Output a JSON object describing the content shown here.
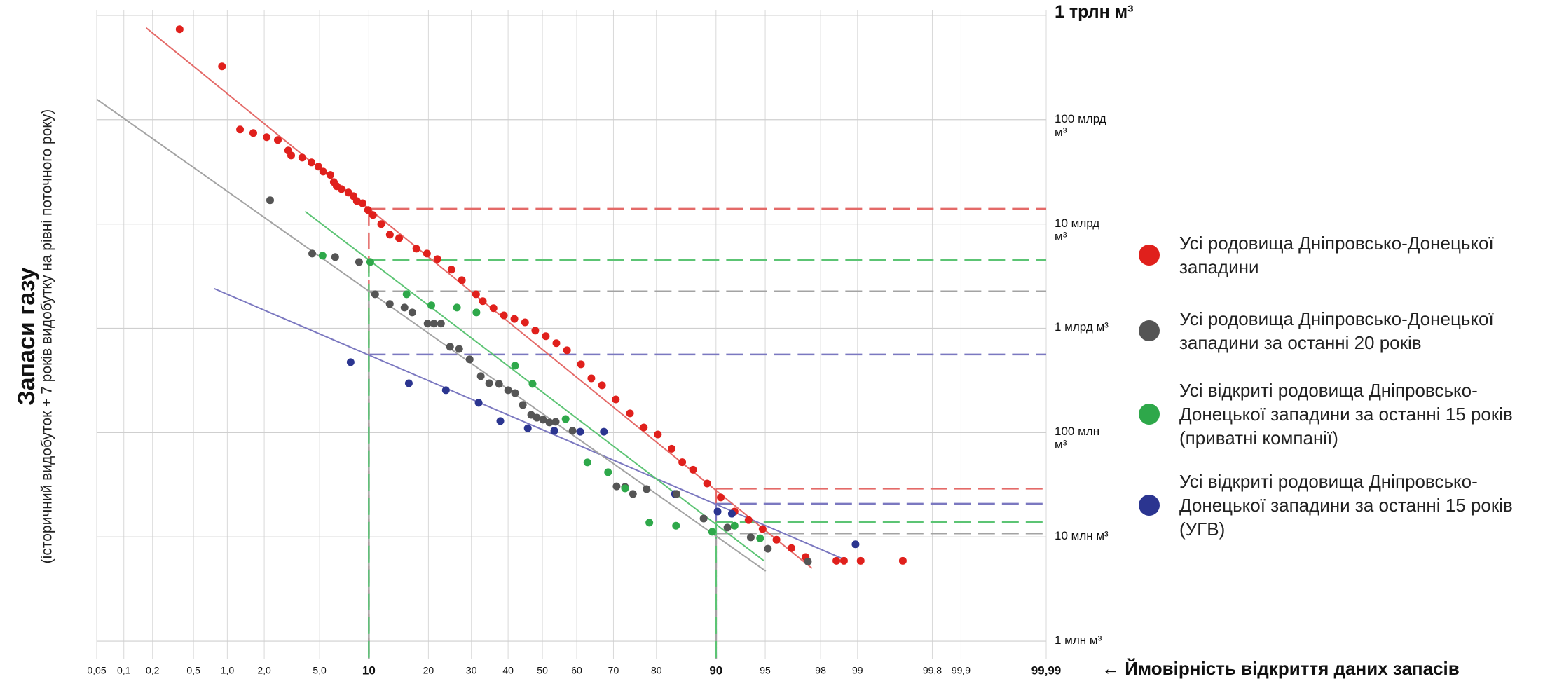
{
  "chart_data": {
    "type": "scatter",
    "y_title": "Запаси газу",
    "y_subtitle": "(історичний видобуток + 7 років видобутку на рівні поточного року)",
    "x_title": "← Ймовірність відкриття даних запасів",
    "xscale": "probability",
    "yscale": "log",
    "grid": true,
    "xlim": [
      0.05,
      99.99
    ],
    "ylim": [
      0.68,
      1130000
    ],
    "xticks": [
      {
        "value": 0.05,
        "label": "0,05"
      },
      {
        "value": 0.1,
        "label": "0,1"
      },
      {
        "value": 0.2,
        "label": "0,2"
      },
      {
        "value": 0.5,
        "label": "0,5"
      },
      {
        "value": 1.0,
        "label": "1,0"
      },
      {
        "value": 2.0,
        "label": "2,0"
      },
      {
        "value": 5.0,
        "label": "5,0"
      },
      {
        "value": 10,
        "label": "10",
        "bold": true
      },
      20,
      30,
      40,
      50,
      60,
      70,
      80,
      {
        "value": 90,
        "label": "90",
        "bold": true
      },
      95,
      98,
      99,
      {
        "value": 99.8,
        "label": "99,8"
      },
      {
        "value": 99.9,
        "label": "99,9"
      },
      {
        "value": 99.99,
        "label": "99,99",
        "bold": true
      }
    ],
    "yticks": [
      {
        "value": 1000000,
        "label": "1 трлн м³",
        "bold": true
      },
      {
        "value": 100000,
        "label": "100 млрд м³"
      },
      {
        "value": 10000,
        "label": "10 млрд м³"
      },
      {
        "value": 1000,
        "label": "1 млрд м³"
      },
      {
        "value": 100,
        "label": "100 млн м³"
      },
      {
        "value": 10,
        "label": "10 млн м³"
      },
      {
        "value": 1,
        "label": "1 млн м³"
      }
    ],
    "ref_probs": [
      10,
      90
    ],
    "series": [
      {
        "name": "Усі родовища Дніпровсько-Донецької западини",
        "color": "#e0201c",
        "line_color": "#e46a68",
        "x": [
          0.37,
          0.9,
          1.28,
          1.64,
          2.09,
          2.54,
          3.03,
          3.18,
          3.81,
          4.41,
          4.91,
          5.28,
          5.87,
          6.18,
          6.44,
          6.9,
          7.61,
          8.15,
          8.54,
          9.21,
          9.9,
          10.55,
          11.7,
          13.0,
          14.5,
          17.6,
          19.7,
          21.9,
          25.1,
          27.6,
          31.2,
          33.0,
          35.9,
          38.8,
          41.8,
          44.9,
          47.9,
          51.0,
          54.1,
          57.2,
          61.2,
          64.1,
          67.0,
          70.6,
          74.1,
          77.3,
          80.3,
          83.0,
          84.9,
          86.7,
          88.8,
          90.6,
          92.2,
          93.6,
          94.8,
          95.8,
          96.7,
          97.4,
          98.5,
          98.7,
          99.06,
          99.61
        ],
        "values": [
          736000,
          324000,
          80500,
          74500,
          67900,
          63900,
          50600,
          45400,
          43300,
          38900,
          35500,
          31800,
          29500,
          25200,
          23000,
          21600,
          20000,
          18500,
          16600,
          15800,
          13600,
          12200,
          9980,
          7900,
          7310,
          5800,
          5200,
          4600,
          3650,
          2890,
          2120,
          1820,
          1560,
          1330,
          1230,
          1140,
          950,
          840,
          720,
          615,
          452,
          331,
          284,
          208,
          153,
          112,
          96,
          70,
          52,
          44,
          32.5,
          23.9,
          17.5,
          14.5,
          11.9,
          9.4,
          7.8,
          6.4,
          5.9,
          5.9,
          5.9,
          5.9
        ],
        "trend": {
          "x": [
            0.172,
            97.67
          ],
          "values": [
            759000,
            5.0
          ]
        },
        "ref_levels": [
          14000,
          29
        ]
      },
      {
        "name": "Усі відкриті родовища Дніпровсько-Донецької западини за останні 15 років (УГВ)",
        "color": "#2b3590",
        "line_color": "#7b78c0",
        "x": [
          7.84,
          16.2,
          23.8,
          31.9,
          37.8,
          45.7,
          53.5,
          61.0,
          67.5,
          83.6,
          90.2,
          91.9,
          98.96
        ],
        "values": [
          473,
          297,
          255,
          193,
          129,
          110,
          104,
          102,
          102,
          25.8,
          17.5,
          16.7,
          8.5
        ],
        "trend": {
          "x": [
            0.77,
            98.7
          ],
          "values": [
            2400,
            6.1
          ]
        },
        "ref_levels": [
          561,
          20.8
        ]
      },
      {
        "name": "Усі родовища Дніпровсько-Донецької западини за останні 20 років",
        "color": "#555555",
        "line_color": "#a3a3a3",
        "x": [
          2.22,
          4.46,
          6.3,
          8.79,
          10.84,
          12.99,
          15.43,
          16.83,
          19.83,
          21.16,
          22.69,
          24.76,
          26.93,
          29.56,
          32.46,
          34.72,
          37.44,
          40.01,
          42.0,
          44.24,
          46.7,
          48.36,
          50.2,
          52.07,
          53.9,
          58.8,
          70.8,
          72.9,
          74.8,
          77.9,
          83.9,
          88.3,
          91.4,
          93.8,
          95.2,
          97.5
        ],
        "values": [
          16900,
          5200,
          4820,
          4320,
          2120,
          1710,
          1580,
          1420,
          1110,
          1110,
          1110,
          665,
          634,
          503,
          347,
          297,
          293,
          255,
          239,
          184,
          148,
          139,
          133,
          125,
          127,
          104,
          30.5,
          30.1,
          25.8,
          28.7,
          25.8,
          15.0,
          12.3,
          9.9,
          7.7,
          5.8
        ],
        "trend": {
          "x": [
            0.05,
            95.04
          ],
          "values": [
            157000,
            4.7
          ]
        },
        "ref_levels": [
          2260,
          10.8
        ]
      },
      {
        "name": "Усі відкриті родовища Дніпровсько-Донецької западини за останні 15 років (приватні компанії)",
        "color": "#2ea84a",
        "line_color": "#5cc474",
        "x": [
          5.23,
          10.19,
          15.8,
          20.6,
          26.4,
          31.3,
          42.0,
          47.1,
          56.8,
          63.0,
          68.6,
          72.9,
          78.5,
          83.8,
          89.5,
          92.2,
          94.6
        ],
        "values": [
          4970,
          4320,
          2120,
          1660,
          1580,
          1420,
          438,
          293,
          135,
          51.8,
          41.7,
          29.2,
          13.7,
          12.8,
          11.2,
          12.8,
          9.7
        ],
        "trend": {
          "x": [
            3.99,
            94.9
          ],
          "values": [
            13200,
            5.9
          ]
        },
        "ref_levels": [
          4530,
          13.9
        ]
      }
    ],
    "legend_order": [
      0,
      2,
      3,
      1
    ]
  }
}
